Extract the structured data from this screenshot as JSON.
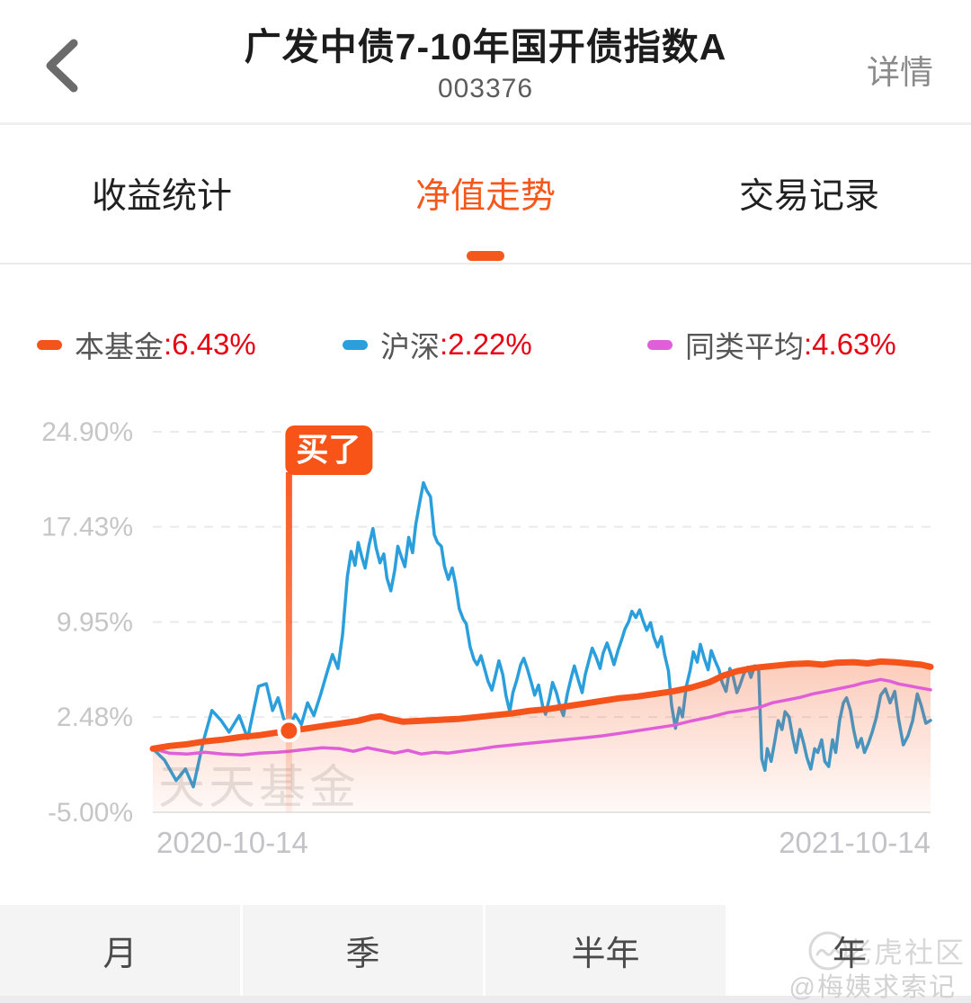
{
  "header": {
    "title": "广发中债7-10年国开债指数A",
    "code": "003376",
    "action": "详情"
  },
  "tabs": {
    "items": [
      {
        "label": "收益统计",
        "active": false
      },
      {
        "label": "净值走势",
        "active": true
      },
      {
        "label": "交易记录",
        "active": false
      }
    ]
  },
  "legend": {
    "items": [
      {
        "label": "本基金",
        "value": ":6.43%",
        "color": "#f4541c"
      },
      {
        "label": "沪深",
        "value": ":2.22%",
        "color": "#2b9fdb"
      },
      {
        "label": "同类平均",
        "value": ":4.63%",
        "color": "#e05fd8"
      }
    ]
  },
  "colors": {
    "accent": "#f4581c",
    "value_red": "#e60012",
    "grid": "#eaeaea",
    "tick_label": "#c6c6c6",
    "date_label": "#c3c3c7"
  },
  "chart_data": {
    "type": "line",
    "title": "净值走势",
    "grid": "horizontal-dashed",
    "legend_position": "top",
    "ylim": [
      -5.0,
      24.9
    ],
    "yticks": [
      {
        "label": "24.90%",
        "value": 24.9
      },
      {
        "label": "17.43%",
        "value": 17.43
      },
      {
        "label": "9.95%",
        "value": 9.95
      },
      {
        "label": "2.48%",
        "value": 2.48
      },
      {
        "label": "-5.00%",
        "value": -5.0
      }
    ],
    "x_axis_labels": [
      "2020-10-14",
      "2021-10-14"
    ],
    "watermark": "天天基金",
    "marker": {
      "label": "买了",
      "t": 0.175,
      "value": 1.41,
      "color": "#f85418"
    },
    "series": [
      {
        "name": "本基金",
        "final": "6.43%",
        "color": "#f4541c",
        "width": 7,
        "fill": true,
        "points": [
          [
            0,
            0
          ],
          [
            0.021,
            0.21
          ],
          [
            0.044,
            0.35
          ],
          [
            0.067,
            0.57
          ],
          [
            0.09,
            0.71
          ],
          [
            0.114,
            0.92
          ],
          [
            0.137,
            1.06
          ],
          [
            0.16,
            1.27
          ],
          [
            0.175,
            1.41
          ],
          [
            0.195,
            1.56
          ],
          [
            0.218,
            1.77
          ],
          [
            0.241,
            1.98
          ],
          [
            0.264,
            2.19
          ],
          [
            0.282,
            2.47
          ],
          [
            0.293,
            2.55
          ],
          [
            0.305,
            2.33
          ],
          [
            0.322,
            2.12
          ],
          [
            0.345,
            2.19
          ],
          [
            0.368,
            2.26
          ],
          [
            0.392,
            2.33
          ],
          [
            0.415,
            2.47
          ],
          [
            0.438,
            2.62
          ],
          [
            0.461,
            2.76
          ],
          [
            0.484,
            2.97
          ],
          [
            0.508,
            3.11
          ],
          [
            0.531,
            3.32
          ],
          [
            0.554,
            3.53
          ],
          [
            0.577,
            3.75
          ],
          [
            0.6,
            3.96
          ],
          [
            0.623,
            4.1
          ],
          [
            0.647,
            4.31
          ],
          [
            0.67,
            4.52
          ],
          [
            0.693,
            4.81
          ],
          [
            0.716,
            5.23
          ],
          [
            0.733,
            5.73
          ],
          [
            0.751,
            6.08
          ],
          [
            0.774,
            6.36
          ],
          [
            0.797,
            6.5
          ],
          [
            0.82,
            6.64
          ],
          [
            0.843,
            6.7
          ],
          [
            0.861,
            6.6
          ],
          [
            0.878,
            6.75
          ],
          [
            0.901,
            6.8
          ],
          [
            0.919,
            6.7
          ],
          [
            0.936,
            6.85
          ],
          [
            0.954,
            6.8
          ],
          [
            0.971,
            6.7
          ],
          [
            0.988,
            6.6
          ],
          [
            1,
            6.43
          ]
        ]
      },
      {
        "name": "沪深",
        "final": "2.22%",
        "color": "#2b9fdb",
        "width": 3.5,
        "fill": false,
        "points": [
          [
            0,
            0
          ],
          [
            0.015,
            -0.9
          ],
          [
            0.03,
            -2.5
          ],
          [
            0.042,
            -1.6
          ],
          [
            0.052,
            -3
          ],
          [
            0.065,
            0.6
          ],
          [
            0.076,
            3
          ],
          [
            0.088,
            2.2
          ],
          [
            0.098,
            1.3
          ],
          [
            0.111,
            2.6
          ],
          [
            0.122,
            0.8
          ],
          [
            0.136,
            4.9
          ],
          [
            0.146,
            5.1
          ],
          [
            0.154,
            3
          ],
          [
            0.161,
            4
          ],
          [
            0.168,
            2.4
          ],
          [
            0.175,
            1.6
          ],
          [
            0.183,
            2.7
          ],
          [
            0.191,
            1.9
          ],
          [
            0.199,
            3.6
          ],
          [
            0.207,
            2.6
          ],
          [
            0.216,
            4.3
          ],
          [
            0.224,
            6
          ],
          [
            0.231,
            7.4
          ],
          [
            0.238,
            6.3
          ],
          [
            0.244,
            9
          ],
          [
            0.25,
            13.5
          ],
          [
            0.255,
            15.5
          ],
          [
            0.26,
            14.4
          ],
          [
            0.264,
            16.2
          ],
          [
            0.269,
            15
          ],
          [
            0.273,
            14.2
          ],
          [
            0.278,
            16
          ],
          [
            0.283,
            17.3
          ],
          [
            0.287,
            15.8
          ],
          [
            0.292,
            14.6
          ],
          [
            0.297,
            15.3
          ],
          [
            0.301,
            13.4
          ],
          [
            0.306,
            12.4
          ],
          [
            0.311,
            14
          ],
          [
            0.315,
            15.9
          ],
          [
            0.32,
            15
          ],
          [
            0.324,
            14.3
          ],
          [
            0.329,
            16.6
          ],
          [
            0.334,
            15.4
          ],
          [
            0.338,
            17.6
          ],
          [
            0.343,
            19.3
          ],
          [
            0.348,
            20.9
          ],
          [
            0.352,
            20.3
          ],
          [
            0.357,
            19.8
          ],
          [
            0.362,
            16.8
          ],
          [
            0.366,
            16.2
          ],
          [
            0.371,
            15.9
          ],
          [
            0.375,
            14.3
          ],
          [
            0.38,
            13.3
          ],
          [
            0.385,
            14.2
          ],
          [
            0.389,
            13
          ],
          [
            0.394,
            11
          ],
          [
            0.399,
            10.2
          ],
          [
            0.403,
            9.8
          ],
          [
            0.408,
            8
          ],
          [
            0.413,
            7
          ],
          [
            0.417,
            6.6
          ],
          [
            0.422,
            7.3
          ],
          [
            0.426,
            6.4
          ],
          [
            0.431,
            5.3
          ],
          [
            0.436,
            4.6
          ],
          [
            0.44,
            5.6
          ],
          [
            0.445,
            6.9
          ],
          [
            0.45,
            5.8
          ],
          [
            0.454,
            4.2
          ],
          [
            0.459,
            2.9
          ],
          [
            0.463,
            4.4
          ],
          [
            0.468,
            5.4
          ],
          [
            0.473,
            6.6
          ],
          [
            0.477,
            7.1
          ],
          [
            0.482,
            6.2
          ],
          [
            0.487,
            5.1
          ],
          [
            0.491,
            4.2
          ],
          [
            0.496,
            5
          ],
          [
            0.501,
            3.4
          ],
          [
            0.505,
            2.7
          ],
          [
            0.51,
            4
          ],
          [
            0.514,
            5.2
          ],
          [
            0.519,
            4.4
          ],
          [
            0.524,
            3.2
          ],
          [
            0.528,
            2.6
          ],
          [
            0.533,
            4.3
          ],
          [
            0.538,
            5.6
          ],
          [
            0.542,
            6.5
          ],
          [
            0.547,
            5.4
          ],
          [
            0.552,
            4.4
          ],
          [
            0.556,
            5.8
          ],
          [
            0.561,
            7
          ],
          [
            0.565,
            7.9
          ],
          [
            0.57,
            7.2
          ],
          [
            0.575,
            6.3
          ],
          [
            0.579,
            7.5
          ],
          [
            0.584,
            8.3
          ],
          [
            0.589,
            7.4
          ],
          [
            0.593,
            6.6
          ],
          [
            0.598,
            7.7
          ],
          [
            0.603,
            8.6
          ],
          [
            0.607,
            9.4
          ],
          [
            0.612,
            10
          ],
          [
            0.616,
            10.8
          ],
          [
            0.621,
            10.3
          ],
          [
            0.626,
            10.9
          ],
          [
            0.63,
            10.1
          ],
          [
            0.635,
            9.3
          ],
          [
            0.64,
            9.9
          ],
          [
            0.644,
            8.8
          ],
          [
            0.649,
            8
          ],
          [
            0.654,
            8.8
          ],
          [
            0.658,
            7.4
          ],
          [
            0.663,
            6.1
          ],
          [
            0.667,
            3.4
          ],
          [
            0.672,
            1.6
          ],
          [
            0.677,
            3.2
          ],
          [
            0.681,
            2.5
          ],
          [
            0.686,
            4.9
          ],
          [
            0.691,
            6.2
          ],
          [
            0.695,
            7.6
          ],
          [
            0.7,
            6.8
          ],
          [
            0.704,
            8.2
          ],
          [
            0.709,
            7.1
          ],
          [
            0.714,
            6.2
          ],
          [
            0.718,
            7.7
          ],
          [
            0.723,
            6.9
          ],
          [
            0.728,
            6.2
          ],
          [
            0.732,
            5.2
          ],
          [
            0.737,
            4.5
          ],
          [
            0.742,
            6.3
          ],
          [
            0.746,
            5.7
          ],
          [
            0.751,
            4.4
          ],
          [
            0.755,
            5
          ],
          [
            0.76,
            5.9
          ],
          [
            0.765,
            6.4
          ],
          [
            0.769,
            5.6
          ],
          [
            0.774,
            6.5
          ],
          [
            0.779,
            6.3
          ],
          [
            0.783,
            -0.8
          ],
          [
            0.787,
            -1.7
          ],
          [
            0.79,
            0
          ],
          [
            0.795,
            -1
          ],
          [
            0.8,
            0.7
          ],
          [
            0.804,
            2.2
          ],
          [
            0.809,
            1.5
          ],
          [
            0.813,
            2.9
          ],
          [
            0.818,
            2.5
          ],
          [
            0.823,
            0.8
          ],
          [
            0.827,
            -0.3
          ],
          [
            0.832,
            1.5
          ],
          [
            0.837,
            0.4
          ],
          [
            0.841,
            -0.7
          ],
          [
            0.846,
            -1.6
          ],
          [
            0.851,
            0
          ],
          [
            0.855,
            -0.3
          ],
          [
            0.86,
            0.7
          ],
          [
            0.864,
            -1
          ],
          [
            0.869,
            -1.4
          ],
          [
            0.874,
            0.7
          ],
          [
            0.878,
            -0.3
          ],
          [
            0.883,
            2.2
          ],
          [
            0.888,
            3.6
          ],
          [
            0.892,
            4
          ],
          [
            0.897,
            3
          ],
          [
            0.901,
            1.5
          ],
          [
            0.906,
            0.1
          ],
          [
            0.911,
            0.8
          ],
          [
            0.915,
            -0.3
          ],
          [
            0.92,
            0.4
          ],
          [
            0.925,
            1.3
          ],
          [
            0.93,
            2.4
          ],
          [
            0.936,
            4.2
          ],
          [
            0.942,
            4.7
          ],
          [
            0.948,
            3.6
          ],
          [
            0.954,
            4.5
          ],
          [
            0.959,
            2.3
          ],
          [
            0.965,
            0.3
          ],
          [
            0.971,
            1
          ],
          [
            0.977,
            2.2
          ],
          [
            0.983,
            4.3
          ],
          [
            0.988,
            3.4
          ],
          [
            0.994,
            2
          ],
          [
            1,
            2.22
          ]
        ]
      },
      {
        "name": "同类平均",
        "final": "4.63%",
        "color": "#e05fd8",
        "width": 3.5,
        "fill": false,
        "points": [
          [
            0,
            0
          ],
          [
            0.021,
            -0.35
          ],
          [
            0.044,
            -0.42
          ],
          [
            0.067,
            -0.28
          ],
          [
            0.09,
            -0.42
          ],
          [
            0.114,
            -0.49
          ],
          [
            0.137,
            -0.35
          ],
          [
            0.16,
            -0.28
          ],
          [
            0.175,
            -0.21
          ],
          [
            0.195,
            -0.07
          ],
          [
            0.218,
            0.07
          ],
          [
            0.241,
            0
          ],
          [
            0.258,
            -0.21
          ],
          [
            0.276,
            0.07
          ],
          [
            0.293,
            -0.14
          ],
          [
            0.311,
            -0.35
          ],
          [
            0.328,
            -0.14
          ],
          [
            0.345,
            -0.42
          ],
          [
            0.363,
            -0.28
          ],
          [
            0.38,
            -0.35
          ],
          [
            0.397,
            -0.21
          ],
          [
            0.415,
            -0.07
          ],
          [
            0.438,
            0.14
          ],
          [
            0.461,
            0.28
          ],
          [
            0.484,
            0.42
          ],
          [
            0.508,
            0.57
          ],
          [
            0.531,
            0.71
          ],
          [
            0.554,
            0.85
          ],
          [
            0.577,
            1
          ],
          [
            0.6,
            1.2
          ],
          [
            0.623,
            1.41
          ],
          [
            0.647,
            1.63
          ],
          [
            0.67,
            1.84
          ],
          [
            0.693,
            2.19
          ],
          [
            0.716,
            2.47
          ],
          [
            0.739,
            2.83
          ],
          [
            0.762,
            3.04
          ],
          [
            0.78,
            3.25
          ],
          [
            0.797,
            3.61
          ],
          [
            0.815,
            3.82
          ],
          [
            0.832,
            4.03
          ],
          [
            0.849,
            4.31
          ],
          [
            0.867,
            4.52
          ],
          [
            0.884,
            4.74
          ],
          [
            0.901,
            4.95
          ],
          [
            0.913,
            5.16
          ],
          [
            0.925,
            5.3
          ],
          [
            0.936,
            5.44
          ],
          [
            0.948,
            5.3
          ],
          [
            0.959,
            5.09
          ],
          [
            0.971,
            4.95
          ],
          [
            0.983,
            4.81
          ],
          [
            1,
            4.63
          ]
        ]
      }
    ]
  },
  "period_tabs": {
    "items": [
      {
        "label": "月",
        "selected": false
      },
      {
        "label": "季",
        "selected": false
      },
      {
        "label": "半年",
        "selected": false
      },
      {
        "label": "年",
        "selected": true
      }
    ]
  },
  "watermarks": {
    "community": "老虎社区",
    "handle": "@梅姨求索记"
  }
}
